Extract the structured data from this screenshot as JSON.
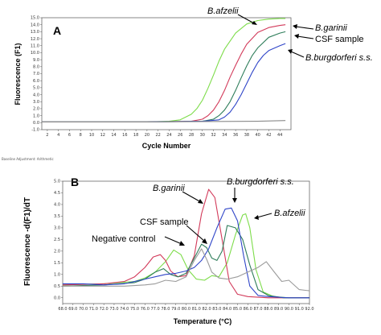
{
  "chart_data": [
    {
      "panel": "A",
      "type": "line",
      "xlabel": "Cycle Number",
      "ylabel": "Fluorescence (F1)",
      "xlim": [
        1,
        46
      ],
      "ylim": [
        -1.0,
        15.0
      ],
      "xticks": [
        2,
        4,
        6,
        8,
        10,
        12,
        14,
        16,
        18,
        20,
        22,
        24,
        26,
        28,
        30,
        32,
        34,
        36,
        38,
        40,
        42,
        44
      ],
      "xtick_labels": [
        "2",
        "4",
        "6",
        "8",
        "10",
        "12",
        "14",
        "16",
        "18",
        "20",
        "22",
        "24",
        "26",
        "28",
        "30",
        "32",
        "34",
        "36",
        "38",
        "40",
        "42",
        "44"
      ],
      "yticks": [
        -1,
        0,
        1,
        2,
        3,
        4,
        5,
        6,
        7,
        8,
        9,
        10,
        11,
        12,
        13,
        14,
        15
      ],
      "ytick_labels": [
        "-1.0",
        "0.0",
        "1.0",
        "2.0",
        "3.0",
        "4.0",
        "5.0",
        "6.0",
        "7.0",
        "8.0",
        "9.0",
        "10.0",
        "11.0",
        "12.0",
        "13.0",
        "14.0",
        "15.0"
      ],
      "grid": false,
      "footnote": "Baseline Adjustment: Arithmetic",
      "series": [
        {
          "name": "B.afzelii",
          "color": "#7ddc4a",
          "x": [
            1,
            10,
            20,
            24,
            26,
            28,
            29,
            30,
            31,
            32,
            33,
            34,
            36,
            38,
            40,
            42,
            44,
            45
          ],
          "y": [
            0.1,
            0.1,
            0.1,
            0.2,
            0.4,
            1.2,
            2.0,
            3.2,
            4.9,
            6.8,
            8.8,
            10.5,
            12.8,
            14.1,
            14.6,
            14.8,
            14.9,
            14.9
          ]
        },
        {
          "name": "B.garinii",
          "color": "#d23a5a",
          "x": [
            1,
            10,
            20,
            28,
            30,
            31,
            32,
            33,
            34,
            35,
            36,
            37,
            38,
            40,
            42,
            44,
            45
          ],
          "y": [
            0.1,
            0.1,
            0.1,
            0.2,
            0.5,
            1.0,
            1.8,
            3.0,
            4.6,
            6.5,
            8.2,
            9.8,
            11.2,
            12.9,
            13.6,
            13.9,
            14.0
          ]
        },
        {
          "name": "CSF sample",
          "color": "#2e7d5a",
          "x": [
            1,
            10,
            20,
            30,
            32,
            33,
            34,
            35,
            36,
            37,
            38,
            39,
            40,
            42,
            44,
            45
          ],
          "y": [
            0.1,
            0.1,
            0.1,
            0.2,
            0.5,
            1.0,
            1.8,
            3.0,
            4.6,
            6.4,
            8.1,
            9.6,
            10.7,
            12.2,
            12.8,
            13.0
          ]
        },
        {
          "name": "B.burgdorferi s.s.",
          "color": "#2f45c8",
          "x": [
            1,
            10,
            20,
            30,
            33,
            34,
            35,
            36,
            37,
            38,
            39,
            40,
            41,
            42,
            44,
            45
          ],
          "y": [
            0.1,
            0.1,
            0.1,
            0.2,
            0.4,
            0.8,
            1.5,
            2.6,
            4.0,
            5.6,
            7.2,
            8.6,
            9.6,
            10.3,
            11.0,
            11.3
          ]
        },
        {
          "name": "Negative control",
          "color": "#8a8a8a",
          "x": [
            1,
            20,
            40,
            45
          ],
          "y": [
            0.1,
            0.1,
            0.2,
            0.3
          ]
        }
      ],
      "annotations": [
        {
          "text": "B.afzelii",
          "italic": true
        },
        {
          "text": "B.garinii",
          "italic": true
        },
        {
          "text": "CSF sample",
          "italic": false
        },
        {
          "text": "B.burgdorferi s.s.",
          "italic": true
        }
      ]
    },
    {
      "panel": "B",
      "type": "line",
      "xlabel": "Temperature (°C)",
      "ylabel": "Fluorescence -d(F1)/dT",
      "xlim": [
        68,
        92
      ],
      "ylim": [
        -0.25,
        5.0
      ],
      "xticks": [
        68,
        69,
        70,
        71,
        72,
        73,
        74,
        75,
        76,
        77,
        78,
        79,
        80,
        81,
        82,
        83,
        84,
        85,
        86,
        87,
        88,
        89,
        90,
        91,
        92
      ],
      "xtick_labels": [
        "68.0",
        "69.0",
        "70.0",
        "71.0",
        "72.0",
        "73.0",
        "74.0",
        "75.0",
        "76.0",
        "77.0",
        "78.0",
        "79.0",
        "80.0",
        "81.0",
        "82.0",
        "83.0",
        "84.0",
        "85.0",
        "86.0",
        "87.0",
        "88.0",
        "89.0",
        "90.0",
        "91.0",
        "92.0"
      ],
      "yticks": [
        0,
        0.5,
        1,
        1.5,
        2,
        2.5,
        3,
        3.5,
        4,
        4.5,
        5
      ],
      "ytick_labels": [
        "0.0",
        "0.5",
        "1.0",
        "1.5",
        "2.0",
        "2.5",
        "3.0",
        "3.5",
        "4.0",
        "4.5",
        "5.0"
      ],
      "grid": false,
      "series": [
        {
          "name": "B.afzelii",
          "color": "#7ddc4a",
          "x": [
            68,
            72,
            75,
            76,
            77,
            78,
            78.8,
            79.5,
            80.2,
            81,
            81.8,
            82.5,
            83.2,
            84,
            84.8,
            85.5,
            85.8,
            86.2,
            86.8,
            87.5,
            88.5,
            90,
            92
          ],
          "y": [
            0.55,
            0.6,
            0.7,
            0.85,
            1.1,
            1.55,
            2.05,
            1.85,
            1.2,
            0.8,
            0.75,
            0.95,
            0.9,
            1.5,
            2.7,
            3.55,
            3.6,
            3.0,
            1.2,
            0.25,
            0.05,
            0.0,
            0.0
          ]
        },
        {
          "name": "B.garinii",
          "color": "#d23a5a",
          "x": [
            68,
            72,
            74,
            75,
            76,
            76.8,
            77.5,
            78,
            78.5,
            79.2,
            80,
            80.8,
            81.5,
            82.2,
            82.8,
            83.5,
            84.2,
            85,
            86,
            88,
            92
          ],
          "y": [
            0.55,
            0.6,
            0.7,
            0.9,
            1.3,
            1.75,
            1.85,
            1.6,
            1.15,
            0.9,
            0.95,
            1.8,
            3.6,
            4.65,
            4.3,
            2.5,
            0.7,
            0.15,
            0.05,
            0.0,
            0.0
          ]
        },
        {
          "name": "CSF sample",
          "color": "#2e7d5a",
          "x": [
            68,
            72,
            75,
            76,
            77,
            77.8,
            78.5,
            79.2,
            80,
            80.8,
            81.5,
            82,
            82.5,
            83,
            83.5,
            84,
            84.8,
            85.5,
            86.2,
            87,
            88,
            89.5,
            92
          ],
          "y": [
            0.5,
            0.55,
            0.65,
            0.8,
            1.1,
            1.25,
            1.0,
            0.9,
            1.05,
            1.7,
            2.3,
            2.15,
            1.7,
            1.6,
            2.0,
            3.1,
            3.0,
            2.5,
            1.4,
            0.35,
            0.1,
            0.0,
            0.0
          ]
        },
        {
          "name": "B.burgdorferi s.s.",
          "color": "#2f45c8",
          "x": [
            68,
            70,
            72,
            74,
            75,
            76,
            77,
            78,
            79,
            80,
            80.8,
            81.5,
            82.2,
            83,
            83.8,
            84.4,
            85,
            85.6,
            86.2,
            87,
            88,
            90,
            92
          ],
          "y": [
            0.6,
            0.6,
            0.55,
            0.6,
            0.7,
            0.8,
            0.9,
            1.0,
            1.05,
            1.15,
            1.3,
            1.6,
            2.1,
            3.0,
            3.8,
            3.85,
            3.3,
            1.8,
            0.5,
            0.1,
            0.05,
            0.0,
            0.0
          ]
        },
        {
          "name": "Negative control",
          "color": "#9a9a9a",
          "x": [
            68,
            72,
            74,
            76,
            77,
            78,
            79,
            80,
            80.8,
            81.5,
            82,
            82.5,
            83.2,
            84,
            85,
            86,
            87,
            87.8,
            88.5,
            89.3,
            90,
            91,
            92
          ],
          "y": [
            0.5,
            0.5,
            0.5,
            0.55,
            0.6,
            0.75,
            0.7,
            0.9,
            1.6,
            2.1,
            1.65,
            1.1,
            0.85,
            0.8,
            0.9,
            1.1,
            1.3,
            1.55,
            1.15,
            0.7,
            0.75,
            0.35,
            0.3
          ]
        }
      ],
      "annotations": [
        {
          "text": "B.garinii",
          "italic": true
        },
        {
          "text": "B.burgdorferi s.s.",
          "italic": true
        },
        {
          "text": "CSF sample",
          "italic": false
        },
        {
          "text": "B.afzelii",
          "italic": true
        },
        {
          "text": "Negative control",
          "italic": false
        }
      ]
    }
  ]
}
